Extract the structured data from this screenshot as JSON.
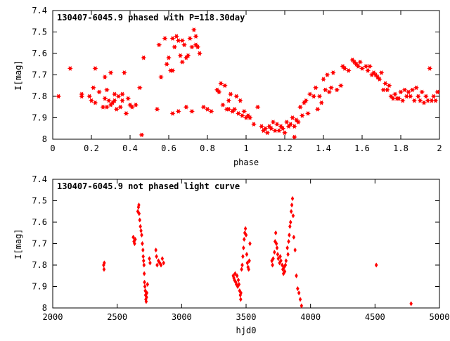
{
  "style": {
    "point_color": "#ff0000",
    "axis_color": "#000000",
    "background": "#ffffff"
  },
  "chart_data": [
    {
      "type": "scatter",
      "title": "130407-6045.9 phased with P=118.30day",
      "xlabel": "phase",
      "ylabel": "I[mag]",
      "xlim": [
        0,
        2
      ],
      "ylim": [
        7.4,
        8.0
      ],
      "y_inverted": true,
      "grid": false,
      "marker": "star",
      "xticks": [
        "0",
        "0.2",
        "0.4",
        "0.6",
        "0.8",
        "1",
        "1.2",
        "1.4",
        "1.6",
        "1.8",
        "2"
      ],
      "yticks": [
        "7.4",
        "7.5",
        "7.6",
        "7.7",
        "7.8",
        "7.9",
        "8"
      ],
      "points": [
        [
          0.03,
          7.8
        ],
        [
          0.09,
          7.67
        ],
        [
          0.15,
          7.79
        ],
        [
          0.15,
          7.8
        ],
        [
          0.19,
          7.8
        ],
        [
          0.2,
          7.82
        ],
        [
          0.21,
          7.76
        ],
        [
          0.22,
          7.67
        ],
        [
          0.22,
          7.83
        ],
        [
          0.24,
          7.78
        ],
        [
          0.26,
          7.85
        ],
        [
          0.27,
          7.81
        ],
        [
          0.27,
          7.71
        ],
        [
          0.28,
          7.77
        ],
        [
          0.28,
          7.85
        ],
        [
          0.29,
          7.82
        ],
        [
          0.3,
          7.69
        ],
        [
          0.3,
          7.84
        ],
        [
          0.31,
          7.83
        ],
        [
          0.32,
          7.79
        ],
        [
          0.32,
          7.82
        ],
        [
          0.33,
          7.86
        ],
        [
          0.34,
          7.8
        ],
        [
          0.35,
          7.85
        ],
        [
          0.36,
          7.82
        ],
        [
          0.36,
          7.79
        ],
        [
          0.37,
          7.69
        ],
        [
          0.38,
          7.88
        ],
        [
          0.39,
          7.81
        ],
        [
          0.4,
          7.84
        ],
        [
          0.41,
          7.85
        ],
        [
          0.43,
          7.84
        ],
        [
          0.45,
          7.76
        ],
        [
          0.46,
          7.98
        ],
        [
          0.47,
          7.62
        ],
        [
          0.54,
          7.86
        ],
        [
          0.55,
          7.56
        ],
        [
          0.56,
          7.71
        ],
        [
          0.58,
          7.53
        ],
        [
          0.59,
          7.65
        ],
        [
          0.6,
          7.62
        ],
        [
          0.61,
          7.68
        ],
        [
          0.62,
          7.68
        ],
        [
          0.62,
          7.53
        ],
        [
          0.62,
          7.88
        ],
        [
          0.63,
          7.57
        ],
        [
          0.64,
          7.52
        ],
        [
          0.65,
          7.54
        ],
        [
          0.65,
          7.87
        ],
        [
          0.66,
          7.61
        ],
        [
          0.67,
          7.54
        ],
        [
          0.67,
          7.64
        ],
        [
          0.68,
          7.56
        ],
        [
          0.69,
          7.85
        ],
        [
          0.69,
          7.62
        ],
        [
          0.7,
          7.61
        ],
        [
          0.71,
          7.53
        ],
        [
          0.72,
          7.57
        ],
        [
          0.72,
          7.87
        ],
        [
          0.73,
          7.49
        ],
        [
          0.74,
          7.56
        ],
        [
          0.74,
          7.52
        ],
        [
          0.75,
          7.57
        ],
        [
          0.76,
          7.6
        ],
        [
          0.78,
          7.85
        ],
        [
          0.8,
          7.86
        ],
        [
          0.82,
          7.87
        ],
        [
          0.85,
          7.77
        ],
        [
          0.86,
          7.78
        ],
        [
          0.87,
          7.74
        ],
        [
          0.88,
          7.84
        ],
        [
          0.89,
          7.75
        ],
        [
          0.9,
          7.86
        ],
        [
          0.91,
          7.82
        ],
        [
          0.91,
          7.86
        ],
        [
          0.92,
          7.79
        ],
        [
          0.93,
          7.87
        ],
        [
          0.94,
          7.86
        ],
        [
          0.95,
          7.8
        ],
        [
          0.96,
          7.88
        ],
        [
          0.97,
          7.82
        ],
        [
          0.98,
          7.89
        ],
        [
          0.99,
          7.87
        ],
        [
          1.0,
          7.9
        ],
        [
          1.01,
          7.89
        ],
        [
          1.02,
          7.9
        ],
        [
          1.04,
          7.93
        ],
        [
          1.06,
          7.85
        ],
        [
          1.08,
          7.94
        ],
        [
          1.09,
          7.96
        ],
        [
          1.1,
          7.95
        ],
        [
          1.11,
          7.97
        ],
        [
          1.12,
          7.94
        ],
        [
          1.13,
          7.95
        ],
        [
          1.14,
          7.92
        ],
        [
          1.15,
          7.96
        ],
        [
          1.16,
          7.93
        ],
        [
          1.17,
          7.96
        ],
        [
          1.18,
          7.94
        ],
        [
          1.19,
          7.95
        ],
        [
          1.2,
          7.97
        ],
        [
          1.21,
          7.92
        ],
        [
          1.22,
          7.94
        ],
        [
          1.23,
          7.93
        ],
        [
          1.24,
          7.9
        ],
        [
          1.25,
          7.94
        ],
        [
          1.25,
          7.99
        ],
        [
          1.26,
          7.91
        ],
        [
          1.27,
          7.92
        ],
        [
          1.28,
          7.85
        ],
        [
          1.29,
          7.89
        ],
        [
          1.3,
          7.83
        ],
        [
          1.31,
          7.82
        ],
        [
          1.32,
          7.88
        ],
        [
          1.33,
          7.79
        ],
        [
          1.35,
          7.8
        ],
        [
          1.36,
          7.76
        ],
        [
          1.37,
          7.86
        ],
        [
          1.38,
          7.8
        ],
        [
          1.39,
          7.83
        ],
        [
          1.4,
          7.72
        ],
        [
          1.41,
          7.77
        ],
        [
          1.42,
          7.7
        ],
        [
          1.43,
          7.78
        ],
        [
          1.44,
          7.76
        ],
        [
          1.45,
          7.69
        ],
        [
          1.47,
          7.77
        ],
        [
          1.49,
          7.75
        ],
        [
          1.5,
          7.66
        ],
        [
          1.51,
          7.67
        ],
        [
          1.53,
          7.68
        ],
        [
          1.55,
          7.63
        ],
        [
          1.56,
          7.64
        ],
        [
          1.57,
          7.65
        ],
        [
          1.58,
          7.66
        ],
        [
          1.59,
          7.64
        ],
        [
          1.6,
          7.67
        ],
        [
          1.62,
          7.66
        ],
        [
          1.63,
          7.68
        ],
        [
          1.64,
          7.66
        ],
        [
          1.65,
          7.7
        ],
        [
          1.66,
          7.69
        ],
        [
          1.67,
          7.7
        ],
        [
          1.68,
          7.71
        ],
        [
          1.69,
          7.72
        ],
        [
          1.7,
          7.69
        ],
        [
          1.71,
          7.77
        ],
        [
          1.72,
          7.74
        ],
        [
          1.73,
          7.77
        ],
        [
          1.74,
          7.75
        ],
        [
          1.75,
          7.8
        ],
        [
          1.76,
          7.81
        ],
        [
          1.77,
          7.79
        ],
        [
          1.78,
          7.81
        ],
        [
          1.79,
          7.81
        ],
        [
          1.8,
          7.78
        ],
        [
          1.81,
          7.82
        ],
        [
          1.82,
          7.77
        ],
        [
          1.83,
          7.8
        ],
        [
          1.84,
          7.78
        ],
        [
          1.85,
          7.8
        ],
        [
          1.86,
          7.77
        ],
        [
          1.87,
          7.82
        ],
        [
          1.88,
          7.76
        ],
        [
          1.89,
          7.8
        ],
        [
          1.9,
          7.82
        ],
        [
          1.91,
          7.78
        ],
        [
          1.92,
          7.83
        ],
        [
          1.93,
          7.8
        ],
        [
          1.94,
          7.82
        ],
        [
          1.95,
          7.67
        ],
        [
          1.96,
          7.82
        ],
        [
          1.97,
          7.8
        ],
        [
          1.98,
          7.82
        ],
        [
          1.99,
          7.78
        ]
      ]
    },
    {
      "type": "scatter",
      "title": "130407-6045.9 not phased light curve",
      "xlabel": "hjd0",
      "ylabel": "I[mag]",
      "xlim": [
        2000,
        5000
      ],
      "ylim": [
        7.4,
        8.0
      ],
      "y_inverted": true,
      "grid": false,
      "marker": "diamond",
      "xticks": [
        "2000",
        "2500",
        "3000",
        "3500",
        "4000",
        "4500",
        "5000"
      ],
      "yticks": [
        "7.4",
        "7.5",
        "7.6",
        "7.7",
        "7.8",
        "7.9",
        "8"
      ],
      "points": [
        [
          2395,
          7.8
        ],
        [
          2398,
          7.82
        ],
        [
          2400,
          7.79
        ],
        [
          2625,
          7.67
        ],
        [
          2630,
          7.69
        ],
        [
          2635,
          7.7
        ],
        [
          2640,
          7.68
        ],
        [
          2660,
          7.55
        ],
        [
          2665,
          7.53
        ],
        [
          2668,
          7.52
        ],
        [
          2670,
          7.56
        ],
        [
          2675,
          7.59
        ],
        [
          2680,
          7.62
        ],
        [
          2685,
          7.64
        ],
        [
          2690,
          7.66
        ],
        [
          2695,
          7.7
        ],
        [
          2700,
          7.73
        ],
        [
          2702,
          7.76
        ],
        [
          2705,
          7.78
        ],
        [
          2708,
          7.8
        ],
        [
          2710,
          7.84
        ],
        [
          2712,
          7.88
        ],
        [
          2715,
          7.9
        ],
        [
          2718,
          7.92
        ],
        [
          2720,
          7.94
        ],
        [
          2722,
          7.96
        ],
        [
          2725,
          7.97
        ],
        [
          2728,
          7.95
        ],
        [
          2730,
          7.93
        ],
        [
          2735,
          7.89
        ],
        [
          2750,
          7.77
        ],
        [
          2755,
          7.79
        ],
        [
          2800,
          7.73
        ],
        [
          2805,
          7.76
        ],
        [
          2810,
          7.8
        ],
        [
          2820,
          7.78
        ],
        [
          2830,
          7.79
        ],
        [
          2840,
          7.8
        ],
        [
          2850,
          7.77
        ],
        [
          2860,
          7.79
        ],
        [
          3400,
          7.85
        ],
        [
          3405,
          7.86
        ],
        [
          3410,
          7.87
        ],
        [
          3415,
          7.84
        ],
        [
          3420,
          7.88
        ],
        [
          3425,
          7.89
        ],
        [
          3430,
          7.85
        ],
        [
          3435,
          7.9
        ],
        [
          3440,
          7.87
        ],
        [
          3445,
          7.89
        ],
        [
          3450,
          7.92
        ],
        [
          3455,
          7.94
        ],
        [
          3458,
          7.96
        ],
        [
          3460,
          7.93
        ],
        [
          3465,
          7.82
        ],
        [
          3470,
          7.8
        ],
        [
          3475,
          7.76
        ],
        [
          3480,
          7.72
        ],
        [
          3485,
          7.68
        ],
        [
          3490,
          7.65
        ],
        [
          3495,
          7.63
        ],
        [
          3500,
          7.66
        ],
        [
          3505,
          7.75
        ],
        [
          3510,
          7.79
        ],
        [
          3515,
          7.81
        ],
        [
          3520,
          7.82
        ],
        [
          3525,
          7.78
        ],
        [
          3530,
          7.7
        ],
        [
          3700,
          7.78
        ],
        [
          3705,
          7.8
        ],
        [
          3710,
          7.77
        ],
        [
          3720,
          7.74
        ],
        [
          3725,
          7.69
        ],
        [
          3730,
          7.65
        ],
        [
          3735,
          7.7
        ],
        [
          3740,
          7.72
        ],
        [
          3745,
          7.75
        ],
        [
          3750,
          7.77
        ],
        [
          3760,
          7.79
        ],
        [
          3765,
          7.76
        ],
        [
          3770,
          7.78
        ],
        [
          3780,
          7.8
        ],
        [
          3785,
          7.82
        ],
        [
          3790,
          7.84
        ],
        [
          3795,
          7.81
        ],
        [
          3800,
          7.83
        ],
        [
          3805,
          7.8
        ],
        [
          3810,
          7.78
        ],
        [
          3820,
          7.72
        ],
        [
          3825,
          7.75
        ],
        [
          3830,
          7.69
        ],
        [
          3835,
          7.66
        ],
        [
          3840,
          7.62
        ],
        [
          3845,
          7.6
        ],
        [
          3850,
          7.55
        ],
        [
          3855,
          7.52
        ],
        [
          3860,
          7.49
        ],
        [
          3865,
          7.57
        ],
        [
          3870,
          7.67
        ],
        [
          3880,
          7.73
        ],
        [
          3890,
          7.85
        ],
        [
          3900,
          7.91
        ],
        [
          3910,
          7.93
        ],
        [
          3920,
          7.96
        ],
        [
          3930,
          7.99
        ],
        [
          4510,
          7.8
        ],
        [
          4780,
          7.98
        ]
      ]
    }
  ]
}
